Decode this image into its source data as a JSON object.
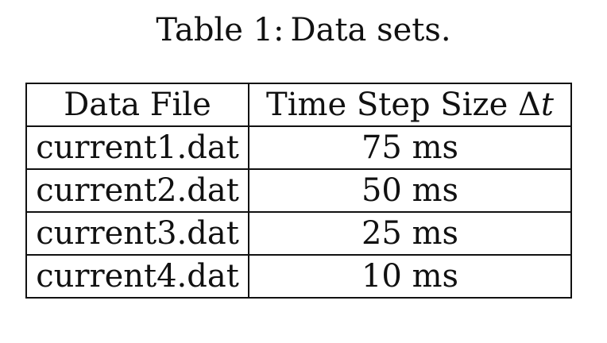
{
  "caption": {
    "label": "Table 1:",
    "text": "Data sets."
  },
  "table": {
    "headers": {
      "file": "Data File",
      "step_prefix": "Time Step Size ",
      "step_symbol": "Δ",
      "step_var": "t"
    },
    "rows": [
      {
        "file": "current1.dat",
        "step": "75 ms"
      },
      {
        "file": "current2.dat",
        "step": "50 ms"
      },
      {
        "file": "current3.dat",
        "step": "25 ms"
      },
      {
        "file": "current4.dat",
        "step": "10 ms"
      }
    ]
  }
}
